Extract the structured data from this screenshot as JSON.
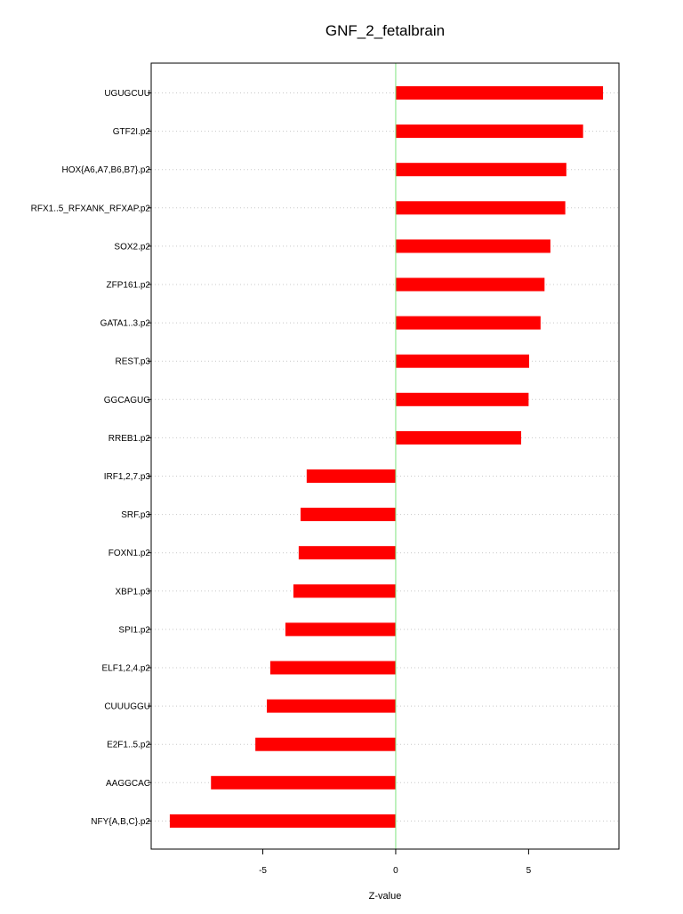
{
  "chart_data": {
    "type": "bar",
    "orientation": "horizontal",
    "title": "GNF_2_fetalbrain",
    "xlabel": "Z-value",
    "ylabel": "",
    "xlim": [
      -9.2,
      8.4
    ],
    "xticks": [
      -5,
      0,
      5
    ],
    "xtick_labels": [
      "-5",
      "0",
      "5"
    ],
    "grid": "horizontal dotted",
    "bar_color": "#ff0000",
    "zero_line_color": "#7fe57f",
    "categories": [
      "UGUGCUU",
      "GTF2I.p2",
      "HOX{A6,A7,B6,B7}.p2",
      "RFX1..5_RFXANK_RFXAP.p2",
      "SOX2.p2",
      "ZFP161.p2",
      "GATA1..3.p2",
      "REST.p3",
      "GGCAGUG",
      "RREB1.p2",
      "IRF1,2,7.p3",
      "SRF.p3",
      "FOXN1.p2",
      "XBP1.p3",
      "SPI1.p2",
      "ELF1,2,4.p2",
      "CUUUGGU",
      "E2F1..5.p2",
      "AAGGCAC",
      "NFY{A,B,C}.p2"
    ],
    "values": [
      7.8,
      7.05,
      6.42,
      6.38,
      5.82,
      5.6,
      5.45,
      5.02,
      5.0,
      4.72,
      -3.35,
      -3.58,
      -3.65,
      -3.85,
      -4.15,
      -4.72,
      -4.85,
      -5.28,
      -6.95,
      -8.5
    ]
  }
}
